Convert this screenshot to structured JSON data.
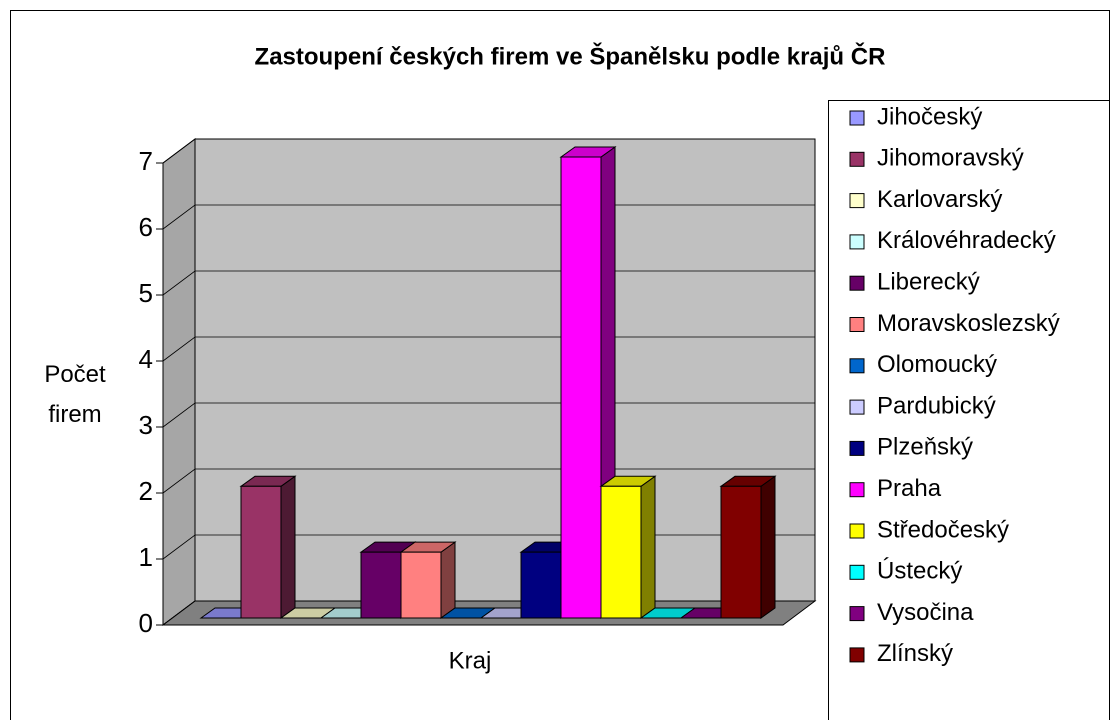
{
  "chart_data": {
    "type": "bar3d",
    "title": "Zastoupení českých firem ve Španělsku podle krajů ČR",
    "x_label": "Kraj",
    "y_label": "Počet firem",
    "categories": [
      null
    ],
    "series": [
      {
        "name": "Jihočeský",
        "color": "#9999ff",
        "values": [
          0
        ]
      },
      {
        "name": "Jihomoravský",
        "color": "#993366",
        "values": [
          2
        ]
      },
      {
        "name": "Karlovarský",
        "color": "#ffffcc",
        "values": [
          0
        ]
      },
      {
        "name": "Královéhradecký",
        "color": "#ccffff",
        "values": [
          0
        ]
      },
      {
        "name": "Liberecký",
        "color": "#660066",
        "values": [
          1
        ]
      },
      {
        "name": "Moravskoslezský",
        "color": "#ff8080",
        "values": [
          1
        ]
      },
      {
        "name": "Olomoucký",
        "color": "#0066cc",
        "values": [
          0
        ]
      },
      {
        "name": "Pardubický",
        "color": "#ccccff",
        "values": [
          0
        ]
      },
      {
        "name": "Plzeňský",
        "color": "#000080",
        "values": [
          1
        ]
      },
      {
        "name": "Praha",
        "color": "#ff00ff",
        "values": [
          7
        ]
      },
      {
        "name": "Středočeský",
        "color": "#ffff00",
        "values": [
          2
        ]
      },
      {
        "name": "Ústecký",
        "color": "#00ffff",
        "values": [
          0
        ]
      },
      {
        "name": "Vysočina",
        "color": "#800080",
        "values": [
          0
        ]
      },
      {
        "name": "Zlínský",
        "color": "#800000",
        "values": [
          2
        ]
      }
    ],
    "ylim": [
      0,
      7
    ],
    "yticks": [
      0,
      1,
      2,
      3,
      4,
      5,
      6,
      7
    ],
    "grid": true,
    "legend": "right"
  }
}
